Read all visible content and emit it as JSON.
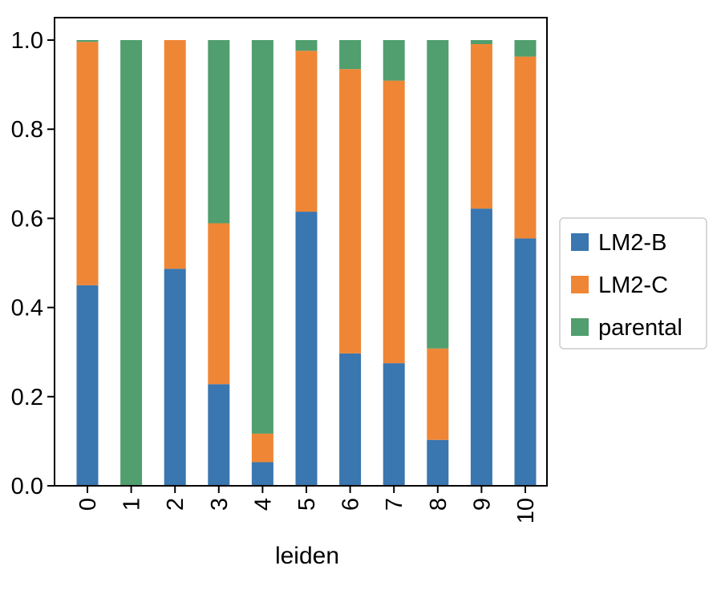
{
  "chart_data": {
    "type": "bar",
    "stacked": true,
    "title": "",
    "xlabel": "leiden",
    "ylabel": "",
    "categories": [
      "0",
      "1",
      "2",
      "3",
      "4",
      "5",
      "6",
      "7",
      "8",
      "9",
      "10"
    ],
    "ylim": [
      0,
      1.0
    ],
    "yticks": [
      "0.0",
      "0.2",
      "0.4",
      "0.6",
      "0.8",
      "1.0"
    ],
    "grid": false,
    "legend_position": "right",
    "series": [
      {
        "name": "LM2-B",
        "color": "#3a76af",
        "values": [
          0.45,
          0.0,
          0.487,
          0.228,
          0.053,
          0.615,
          0.297,
          0.275,
          0.103,
          0.622,
          0.555
        ]
      },
      {
        "name": "LM2-C",
        "color": "#ef8636",
        "values": [
          0.546,
          0.0,
          0.513,
          0.361,
          0.064,
          0.361,
          0.638,
          0.634,
          0.205,
          0.369,
          0.408
        ]
      },
      {
        "name": "parental",
        "color": "#519e6e",
        "values": [
          0.004,
          1.0,
          0.0,
          0.411,
          0.883,
          0.024,
          0.065,
          0.091,
          0.692,
          0.009,
          0.037
        ]
      }
    ]
  }
}
